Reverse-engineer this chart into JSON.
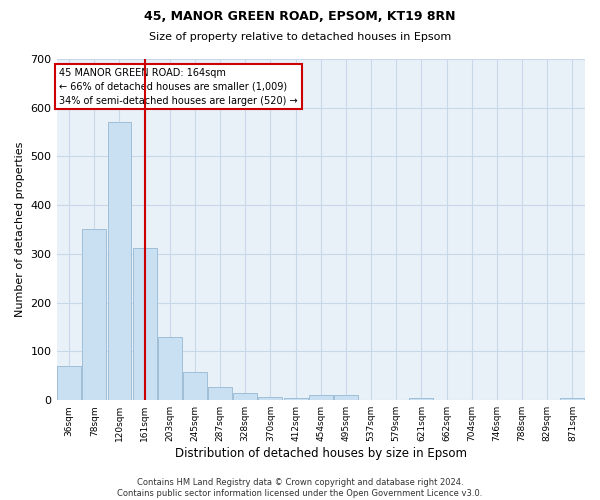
{
  "title1": "45, MANOR GREEN ROAD, EPSOM, KT19 8RN",
  "title2": "Size of property relative to detached houses in Epsom",
  "xlabel": "Distribution of detached houses by size in Epsom",
  "ylabel": "Number of detached properties",
  "bar_labels": [
    "36sqm",
    "78sqm",
    "120sqm",
    "161sqm",
    "203sqm",
    "245sqm",
    "287sqm",
    "328sqm",
    "370sqm",
    "412sqm",
    "454sqm",
    "495sqm",
    "537sqm",
    "579sqm",
    "621sqm",
    "662sqm",
    "704sqm",
    "746sqm",
    "788sqm",
    "829sqm",
    "871sqm"
  ],
  "bar_values": [
    70,
    352,
    571,
    313,
    130,
    57,
    27,
    15,
    7,
    5,
    10,
    10,
    0,
    0,
    5,
    0,
    0,
    0,
    0,
    0,
    5
  ],
  "bar_color": "#c9dff2",
  "bar_edge_color": "#a0bfd8",
  "grid_color": "#c8d8e8",
  "background_color": "#e8f0f8",
  "vline_color": "#cc0000",
  "annotation_text": "45 MANOR GREEN ROAD: 164sqm\n← 66% of detached houses are smaller (1,009)\n34% of semi-detached houses are larger (520) →",
  "annotation_box_color": "#cc0000",
  "ylim": [
    0,
    700
  ],
  "yticks": [
    0,
    100,
    200,
    300,
    400,
    500,
    600,
    700
  ],
  "footer": "Contains HM Land Registry data © Crown copyright and database right 2024.\nContains public sector information licensed under the Open Government Licence v3.0."
}
